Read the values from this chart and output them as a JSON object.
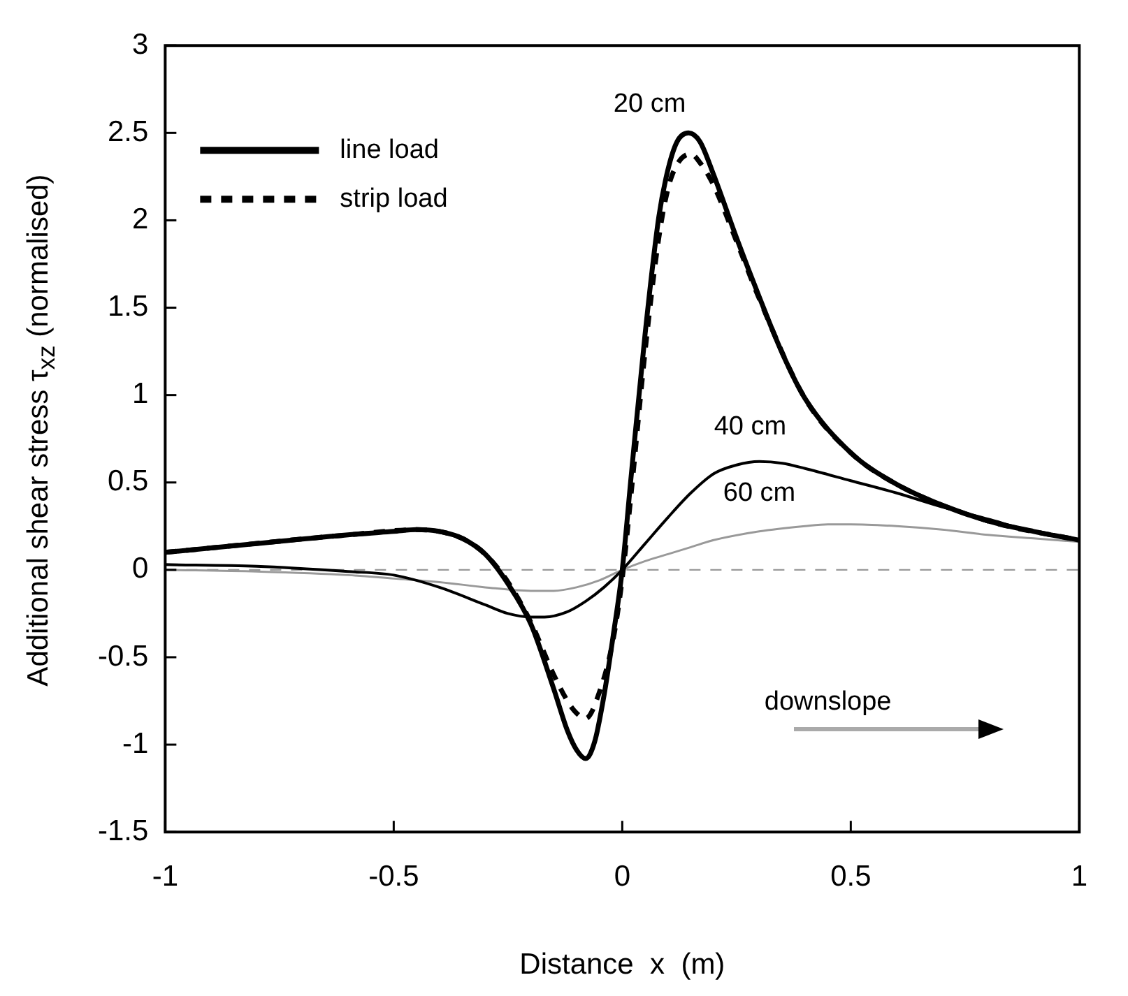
{
  "chart_data": {
    "type": "line",
    "xlabel": "Distance  x  (m)",
    "ylabel": "Additional shear stress  τ$_{xz}$  (normalised)",
    "xlim": [
      -1,
      1
    ],
    "xticks": [
      -1,
      -0.5,
      0,
      0.5,
      1
    ],
    "ylim": [
      -1.5,
      3
    ],
    "yticks": [
      -1.5,
      -1,
      -0.5,
      0,
      0.5,
      1,
      1.5,
      2,
      2.5,
      3
    ],
    "grid": false,
    "legend": "top left",
    "marker": "none",
    "series": [
      {
        "name": "line load",
        "color": "#000000",
        "line_style": "solid",
        "x": [
          -1,
          -0.8,
          -0.6,
          -0.5,
          -0.45,
          -0.4,
          -0.35,
          -0.3,
          -0.25,
          -0.2,
          -0.15,
          -0.12,
          -0.1,
          -0.08,
          -0.06,
          -0.04,
          -0.02,
          0,
          0.02,
          0.05,
          0.08,
          0.1,
          0.12,
          0.145,
          0.17,
          0.2,
          0.25,
          0.3,
          0.35,
          0.4,
          0.5,
          0.6,
          0.7,
          0.8,
          0.9,
          1
        ],
        "values": [
          0.1,
          0.15,
          0.2,
          0.22,
          0.23,
          0.22,
          0.18,
          0.09,
          -0.08,
          -0.31,
          -0.68,
          -0.92,
          -1.03,
          -1.08,
          -0.98,
          -0.72,
          -0.38,
          0,
          0.55,
          1.35,
          2.02,
          2.29,
          2.45,
          2.5,
          2.45,
          2.26,
          1.9,
          1.56,
          1.24,
          0.98,
          0.67,
          0.49,
          0.37,
          0.28,
          0.22,
          0.17
        ]
      },
      {
        "name": "strip load",
        "color": "#000000",
        "line_style": "dashed",
        "x": [
          -1,
          -0.6,
          -0.45,
          -0.35,
          -0.3,
          -0.25,
          -0.2,
          -0.15,
          -0.12,
          -0.1,
          -0.08,
          -0.05,
          -0.02,
          0,
          0.02,
          0.05,
          0.08,
          0.1,
          0.12,
          0.15,
          0.17,
          0.2,
          0.25,
          0.3,
          0.4,
          0.5,
          0.6,
          0.8,
          1
        ],
        "values": [
          0.1,
          0.2,
          0.23,
          0.18,
          0.09,
          -0.07,
          -0.3,
          -0.6,
          -0.75,
          -0.82,
          -0.85,
          -0.7,
          -0.4,
          -0.05,
          0.45,
          1.25,
          1.9,
          2.18,
          2.32,
          2.38,
          2.33,
          2.2,
          1.88,
          1.55,
          0.98,
          0.67,
          0.49,
          0.28,
          0.17
        ]
      },
      {
        "color": "#000000",
        "line_style": "solid",
        "x": [
          -1,
          -0.8,
          -0.6,
          -0.5,
          -0.4,
          -0.3,
          -0.25,
          -0.2,
          -0.17,
          -0.12,
          -0.08,
          -0.04,
          0,
          0.05,
          0.1,
          0.15,
          0.2,
          0.25,
          0.3,
          0.35,
          0.4,
          0.5,
          0.6,
          0.7,
          0.8,
          0.9,
          1
        ],
        "values": [
          0.03,
          0.02,
          -0.01,
          -0.03,
          -0.1,
          -0.2,
          -0.25,
          -0.27,
          -0.27,
          -0.24,
          -0.18,
          -0.1,
          0,
          0.15,
          0.3,
          0.44,
          0.55,
          0.6,
          0.62,
          0.61,
          0.58,
          0.51,
          0.44,
          0.36,
          0.29,
          0.22,
          0.17
        ]
      },
      {
        "color": "#999999",
        "line_style": "solid",
        "x": [
          -1,
          -0.8,
          -0.6,
          -0.5,
          -0.4,
          -0.3,
          -0.2,
          -0.15,
          -0.1,
          -0.05,
          0,
          0.05,
          0.1,
          0.15,
          0.2,
          0.3,
          0.4,
          0.45,
          0.5,
          0.6,
          0.7,
          0.8,
          0.9,
          1
        ],
        "values": [
          0,
          -0.01,
          -0.03,
          -0.05,
          -0.07,
          -0.1,
          -0.12,
          -0.12,
          -0.1,
          -0.06,
          0,
          0.05,
          0.09,
          0.13,
          0.17,
          0.22,
          0.25,
          0.26,
          0.26,
          0.25,
          0.23,
          0.2,
          0.18,
          0.16
        ]
      }
    ],
    "ref_lines": [
      {
        "axis": "y",
        "value": 0,
        "color": "#999999",
        "line_style": "dashed"
      }
    ],
    "annotations": [
      "20 cm",
      "40 cm",
      "60 cm",
      "downslope"
    ]
  }
}
